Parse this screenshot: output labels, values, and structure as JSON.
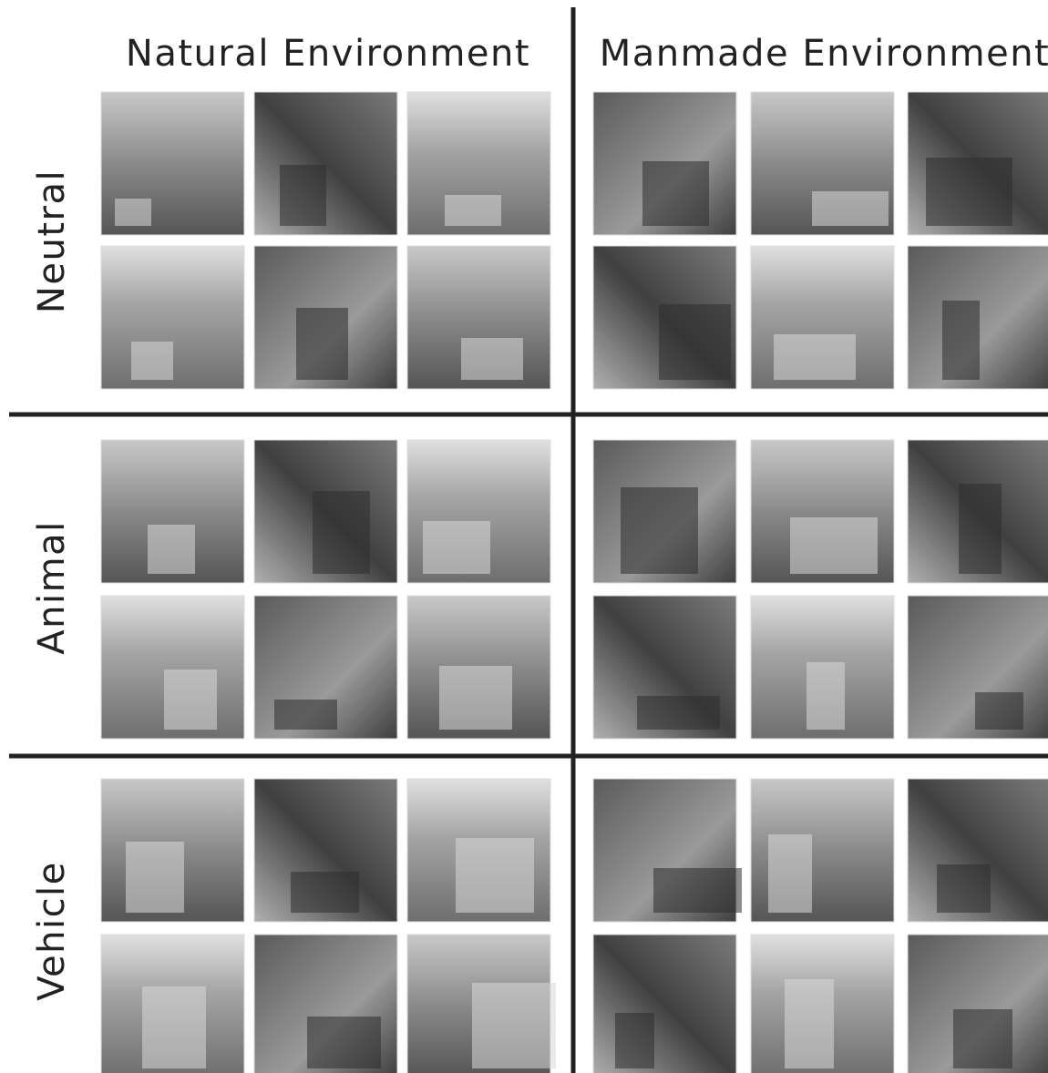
{
  "columns": [
    "Natural Environment",
    "Manmade Environment"
  ],
  "rows": [
    "Neutral",
    "Animal",
    "Vehicle"
  ]
}
